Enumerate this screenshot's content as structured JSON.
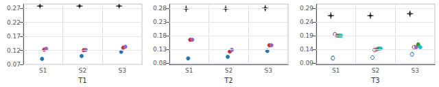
{
  "chart_data": [
    {
      "type": "scatter",
      "xlabel": "T1",
      "categories": [
        "S1",
        "S2",
        "S3"
      ],
      "ylim": [
        0.07,
        0.285
      ],
      "yticks": [
        0.07,
        0.12,
        0.17,
        0.22,
        0.27
      ],
      "grid": true,
      "series": [
        {
          "color": "#111111",
          "marker": "plus",
          "values": [
            0.278,
            0.278,
            0.278
          ],
          "errors": [
            0.002,
            0.002,
            0.002
          ]
        },
        {
          "color": "#1f77b4",
          "marker": "circle",
          "values": [
            0.09,
            0.1,
            0.115
          ],
          "errors": [
            0.004,
            0.003,
            0.003
          ]
        },
        {
          "color": "#d62728",
          "marker": "circle",
          "values": [
            0.123,
            0.121,
            0.13
          ],
          "errors": [
            0.003,
            0.003,
            0.003
          ]
        },
        {
          "color": "#9467bd",
          "marker": "circle",
          "values": [
            0.126,
            0.122,
            0.133
          ],
          "errors": [
            0.003,
            0.003,
            0.004
          ]
        }
      ]
    },
    {
      "type": "scatter",
      "xlabel": "T2",
      "categories": [
        "S1",
        "S2",
        "S3"
      ],
      "ylim": [
        0.075,
        0.295
      ],
      "yticks": [
        0.08,
        0.13,
        0.18,
        0.23,
        0.28
      ],
      "grid": true,
      "series": [
        {
          "color": "#111111",
          "marker": "plus",
          "values": [
            0.278,
            0.278,
            0.28
          ],
          "errors": [
            0.002,
            0.002,
            0.003
          ]
        },
        {
          "color": "#1f77b4",
          "marker": "circle",
          "values": [
            0.097,
            0.103,
            0.124
          ],
          "errors": [
            0.004,
            0.003,
            0.003
          ]
        },
        {
          "color": "#d62728",
          "marker": "circle",
          "values": [
            0.165,
            0.122,
            0.145
          ],
          "errors": [
            0.004,
            0.003,
            0.003
          ]
        },
        {
          "color": "#9467bd",
          "marker": "circle",
          "values": [
            0.165,
            0.128,
            0.145
          ],
          "errors": [
            0.003,
            0.004,
            0.003
          ]
        }
      ]
    },
    {
      "type": "scatter",
      "xlabel": "T3",
      "categories": [
        "S1",
        "S2",
        "S3"
      ],
      "ylim": [
        0.085,
        0.305
      ],
      "yticks": [
        0.09,
        0.14,
        0.19,
        0.24,
        0.29
      ],
      "grid": true,
      "series": [
        {
          "color": "#111111",
          "marker": "plus",
          "values": [
            0.263,
            0.263,
            0.27
          ],
          "errors": [
            0.002,
            0.002,
            0.003
          ]
        },
        {
          "color": "#1f77b4",
          "marker": "open_circle",
          "values": [
            0.108,
            0.11,
            0.122
          ],
          "errors": [
            0.007,
            0.004,
            0.006
          ]
        },
        {
          "color": "#d62728",
          "marker": "open_circle",
          "values": [
            0.195,
            0.138,
            0.148
          ],
          "errors": [
            0.005,
            0.003,
            0.003
          ]
        },
        {
          "color": "#9467bd",
          "marker": "circle",
          "values": [
            0.19,
            0.14,
            0.148
          ],
          "errors": [
            0.004,
            0.003,
            0.003
          ]
        },
        {
          "color": "#2ca02c",
          "marker": "circle",
          "values": [
            0.19,
            0.143,
            0.158
          ],
          "errors": [
            0.004,
            0.003,
            0.005
          ]
        },
        {
          "color": "#17becf",
          "marker": "circle",
          "values": [
            0.19,
            0.143,
            0.148
          ],
          "errors": [
            0.004,
            0.003,
            0.004
          ]
        }
      ]
    }
  ]
}
